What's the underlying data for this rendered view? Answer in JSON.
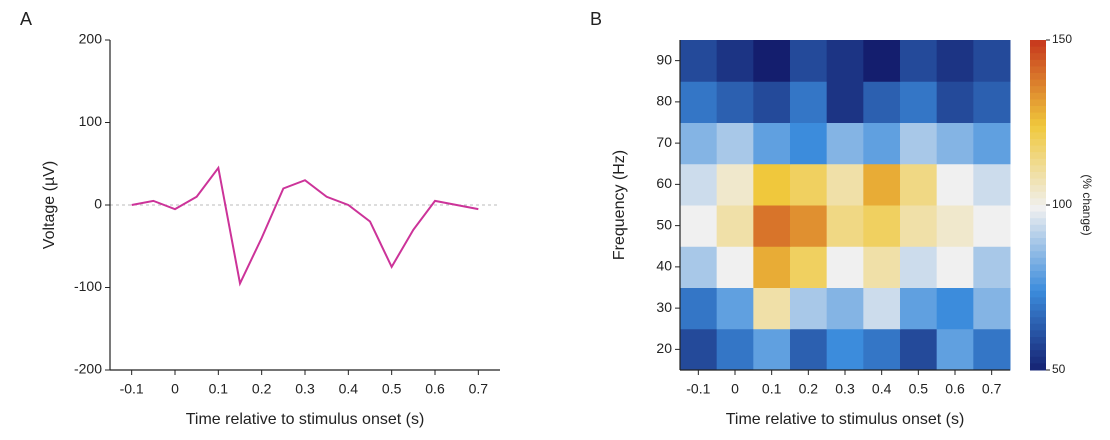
{
  "chart_data": [
    {
      "type": "line",
      "panel_label": "A",
      "xlabel": "Time relative to stimulus onset (s)",
      "ylabel": "Voltage (µV)",
      "x": [
        -0.1,
        -0.05,
        0,
        0.05,
        0.1,
        0.15,
        0.2,
        0.25,
        0.3,
        0.35,
        0.4,
        0.45,
        0.5,
        0.55,
        0.6,
        0.65,
        0.7
      ],
      "values": [
        0,
        5,
        -5,
        10,
        45,
        -95,
        -40,
        20,
        30,
        10,
        0,
        -20,
        -75,
        -30,
        5,
        0,
        -5
      ],
      "color": "#cc3399",
      "xlim": [
        -0.15,
        0.75
      ],
      "xticks": [
        -0.1,
        0,
        0.1,
        0.2,
        0.3,
        0.4,
        0.5,
        0.6,
        0.7
      ],
      "ylim": [
        -200,
        200
      ],
      "yticks": [
        -200,
        -100,
        0,
        100,
        200
      ]
    },
    {
      "type": "heatmap",
      "panel_label": "B",
      "xlabel": "Time relative to stimulus onset (s)",
      "ylabel": "Frequency (Hz)",
      "x": [
        -0.1,
        0,
        0.1,
        0.2,
        0.3,
        0.4,
        0.5,
        0.6,
        0.7
      ],
      "y": [
        20,
        30,
        40,
        50,
        60,
        70,
        80,
        90
      ],
      "z": [
        [
          60,
          70,
          80,
          65,
          75,
          70,
          60,
          80,
          70
        ],
        [
          70,
          80,
          110,
          90,
          85,
          95,
          80,
          75,
          85
        ],
        [
          90,
          100,
          130,
          120,
          100,
          110,
          95,
          100,
          90
        ],
        [
          100,
          110,
          140,
          135,
          115,
          120,
          110,
          105,
          100
        ],
        [
          95,
          105,
          125,
          120,
          110,
          130,
          115,
          100,
          95
        ],
        [
          85,
          90,
          80,
          75,
          85,
          80,
          90,
          85,
          80
        ],
        [
          70,
          65,
          60,
          70,
          55,
          65,
          70,
          60,
          65
        ],
        [
          60,
          55,
          50,
          60,
          55,
          50,
          60,
          55,
          60
        ]
      ],
      "xlim": [
        -0.15,
        0.75
      ],
      "xticks": [
        -0.1,
        0,
        0.1,
        0.2,
        0.3,
        0.4,
        0.5,
        0.6,
        0.7
      ],
      "ylim": [
        15,
        95
      ],
      "yticks": [
        20,
        30,
        40,
        50,
        60,
        70,
        80,
        90
      ],
      "zlim": [
        50,
        150
      ],
      "zticks": [
        50,
        100,
        150
      ],
      "zlabel": "(% change)"
    }
  ]
}
